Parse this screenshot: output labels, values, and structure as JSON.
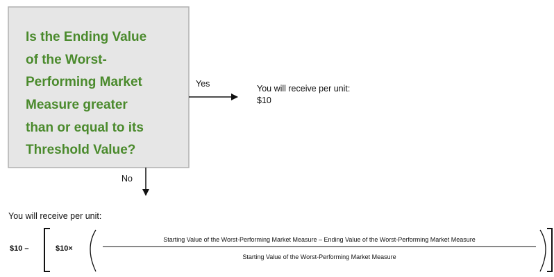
{
  "question": {
    "lines": [
      "Is the Ending Value",
      "of the Worst-",
      "Performing Market",
      "Measure greater",
      "than or equal to its",
      "Threshold Value?"
    ]
  },
  "yes_branch": {
    "label": "Yes",
    "outcome_title": "You will receive per unit:",
    "outcome_value": "$10"
  },
  "no_branch": {
    "label": "No",
    "outcome_title": "You will receive per unit:",
    "formula": {
      "lead": "$10 –",
      "multiplier": "$10×",
      "numerator": "Starting Value of the Worst-Performing Market Measure – Ending Value of the Worst-Performing Market Measure",
      "denominator": "Starting Value of the Worst-Performing Market Measure"
    }
  }
}
